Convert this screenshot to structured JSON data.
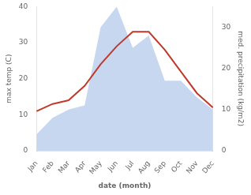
{
  "chart_data": {
    "type": "line",
    "categories": [
      "Jan",
      "Feb",
      "Mar",
      "Apr",
      "May",
      "Jun",
      "Jul",
      "Aug",
      "Sep",
      "Oct",
      "Nov",
      "Dec"
    ],
    "xlabel": "date (month)",
    "ylabel": "max temp (C)",
    "y2label": "med. precipitation (kg/m2)",
    "series": [
      {
        "type": "area",
        "axis": "y2",
        "color": "#aec6e8",
        "values": [
          4,
          8,
          10,
          11,
          30,
          35,
          25,
          28,
          17,
          17,
          13,
          10
        ]
      },
      {
        "type": "line",
        "color": "#c0392b",
        "values": [
          11,
          13,
          14,
          18,
          24,
          29,
          33,
          33,
          28,
          22,
          16,
          12
        ]
      }
    ],
    "ylim": [
      0,
      40
    ],
    "yticks": [
      0,
      10,
      20,
      30,
      40
    ],
    "y2lim": [
      0,
      35
    ],
    "y2ticks": [
      0,
      10,
      20,
      30
    ],
    "grid": false
  }
}
